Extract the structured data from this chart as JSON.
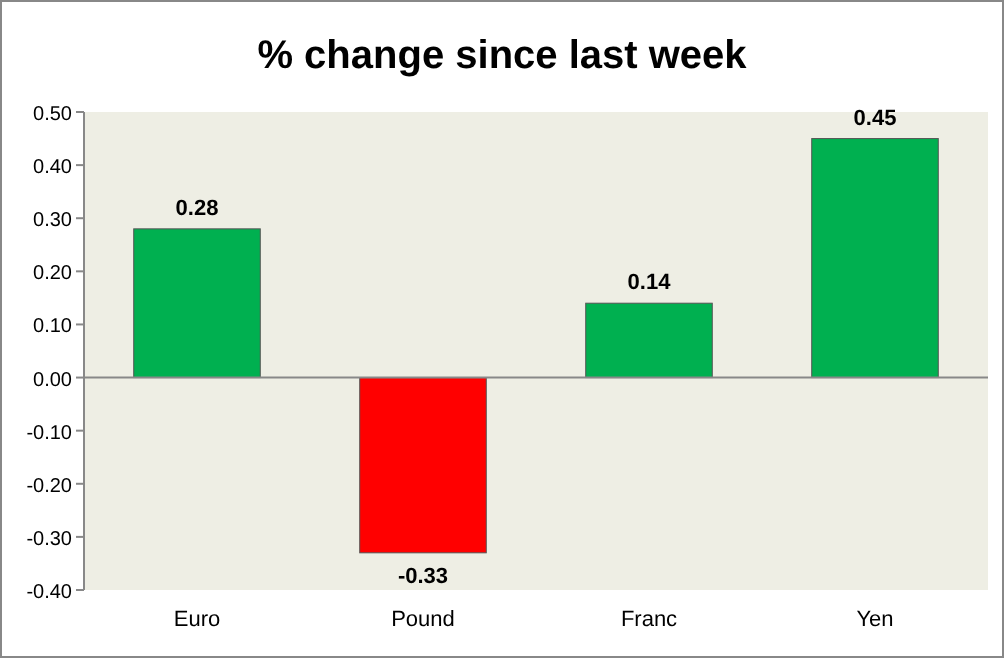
{
  "chart_data": {
    "type": "bar",
    "title": "% change since last week",
    "categories": [
      "Euro",
      "Pound",
      "Franc",
      "Yen"
    ],
    "values": [
      0.28,
      -0.33,
      0.14,
      0.45
    ],
    "colors": [
      "#00b050",
      "#ff0000",
      "#00b050",
      "#00b050"
    ],
    "ylim": [
      -0.4,
      0.5
    ],
    "yticks": [
      {
        "value": -0.4,
        "label": "-0.40"
      },
      {
        "value": -0.3,
        "label": "-0.30"
      },
      {
        "value": -0.2,
        "label": "-0.20"
      },
      {
        "value": -0.1,
        "label": "-0.10"
      },
      {
        "value": 0,
        "label": "0.00"
      },
      {
        "value": 0.1,
        "label": "0.10"
      },
      {
        "value": 0.2,
        "label": "0.20"
      },
      {
        "value": 0.3,
        "label": "0.30"
      },
      {
        "value": 0.4,
        "label": "0.40"
      },
      {
        "value": 0.5,
        "label": "0.50"
      }
    ],
    "data_labels": true
  }
}
